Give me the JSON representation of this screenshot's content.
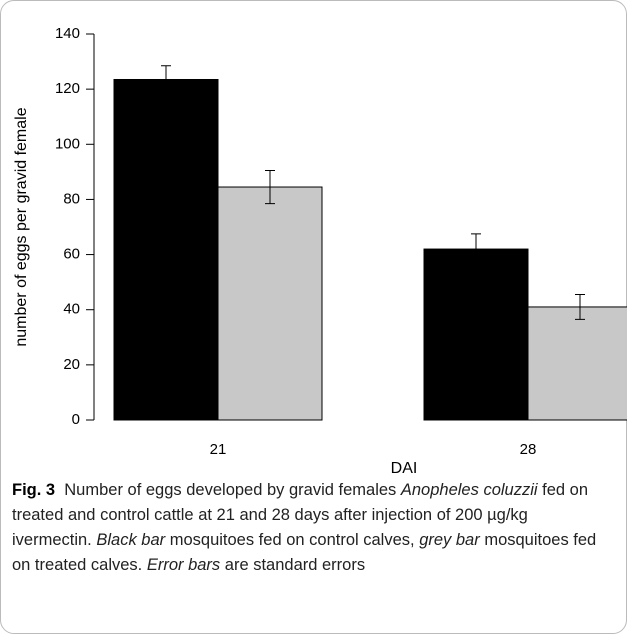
{
  "chart_data": {
    "type": "bar",
    "x_label": "DAI",
    "y_label": "number of eggs per gravid female",
    "categories": [
      "21",
      "28"
    ],
    "series": [
      {
        "color": "#000000",
        "values": [
          123.5,
          62
        ],
        "errors": [
          5,
          5.5
        ]
      },
      {
        "color": "#c8c8c8",
        "values": [
          84.5,
          41
        ],
        "errors": [
          6,
          4.5
        ]
      }
    ],
    "ylim": [
      0,
      140
    ],
    "yticks": [
      0,
      20,
      40,
      60,
      80,
      100,
      120,
      140
    ]
  },
  "caption": {
    "label": "Fig. 3",
    "parts": [
      {
        "text": "Number of eggs developed by gravid females ",
        "italic": false
      },
      {
        "text": "Anopheles coluzzii",
        "italic": true
      },
      {
        "text": " fed on treated and control cattle at 21 and 28 days after injection of 200 µg/kg ivermectin. ",
        "italic": false
      },
      {
        "text": "Black bar",
        "italic": true
      },
      {
        "text": " mosquitoes fed on control calves, ",
        "italic": false
      },
      {
        "text": "grey bar",
        "italic": true
      },
      {
        "text": " mosquitoes fed on treated calves. ",
        "italic": false
      },
      {
        "text": "Error bars",
        "italic": true
      },
      {
        "text": " are standard errors",
        "italic": false
      }
    ]
  }
}
